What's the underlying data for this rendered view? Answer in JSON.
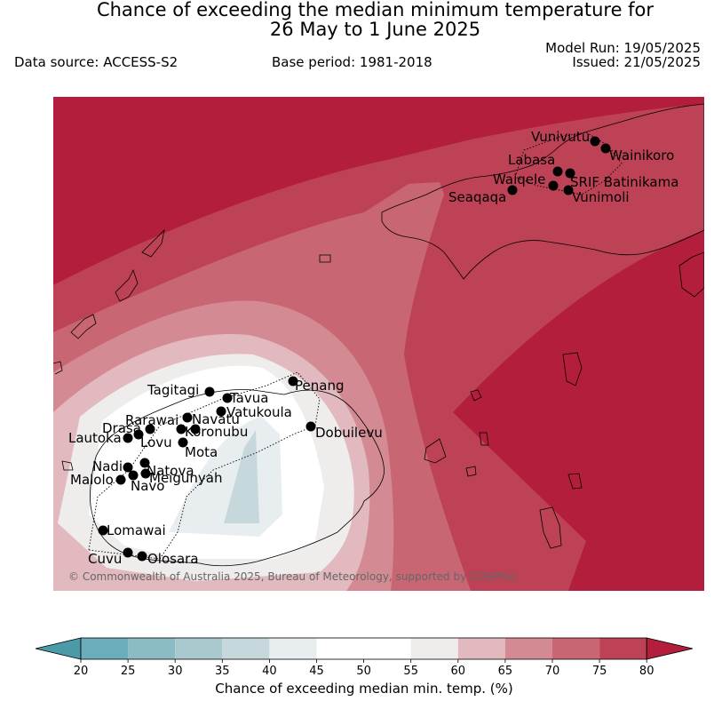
{
  "header": {
    "title_line1": "Chance of exceeding the median minimum temperature for",
    "title_line2": "26 May to 1 June 2025",
    "data_source": "Data source: ACCESS-S2",
    "base_period": "Base period: 1981-2018",
    "model_run": "Model Run: 19/05/2025",
    "issued": "Issued: 21/05/2025"
  },
  "map": {
    "copyright": "© Commonwealth of Australia 2025, Bureau of Meteorology, supported by COSPPac",
    "places": [
      {
        "name": "Vunivutu"
      },
      {
        "name": "Wainikoro"
      },
      {
        "name": "Labasa"
      },
      {
        "name": "SRIF Batinikama"
      },
      {
        "name": "Waiqele"
      },
      {
        "name": "Seaqaqa"
      },
      {
        "name": "Vunimoli"
      },
      {
        "name": "Penang"
      },
      {
        "name": "Tagitagi"
      },
      {
        "name": "Tavua"
      },
      {
        "name": "Vatukoula"
      },
      {
        "name": "Rarawai"
      },
      {
        "name": "Navatu"
      },
      {
        "name": "Drasa"
      },
      {
        "name": "Koronubu"
      },
      {
        "name": "Lautoka"
      },
      {
        "name": "Lovu"
      },
      {
        "name": "Dobuilevu"
      },
      {
        "name": "Mota"
      },
      {
        "name": "Natova"
      },
      {
        "name": "Nadi"
      },
      {
        "name": "Meigunyah"
      },
      {
        "name": "Malolo"
      },
      {
        "name": "Navo"
      },
      {
        "name": "Lomawai"
      },
      {
        "name": "Cuvu"
      },
      {
        "name": "Olosara"
      }
    ]
  },
  "colorbar": {
    "label": "Chance of exceeding median min. temp. (%)",
    "ticks": [
      "20",
      "25",
      "30",
      "35",
      "40",
      "45",
      "50",
      "55",
      "60",
      "65",
      "70",
      "75",
      "80"
    ],
    "colors": {
      "under": "#4a9aa8",
      "b20_25": "#6badbb",
      "b25_30": "#8bbbc4",
      "b30_35": "#a9c9ce",
      "b35_40": "#c6d8dc",
      "b40_45": "#e8eef0",
      "b45_50": "#ffffff",
      "b50_55": "#ffffff",
      "b55_60": "#efecec",
      "b60_65": "#e1b9be",
      "b65_70": "#d48a93",
      "b70_75": "#c96673",
      "b75_80": "#be4256",
      "over": "#b21e3b"
    }
  }
}
